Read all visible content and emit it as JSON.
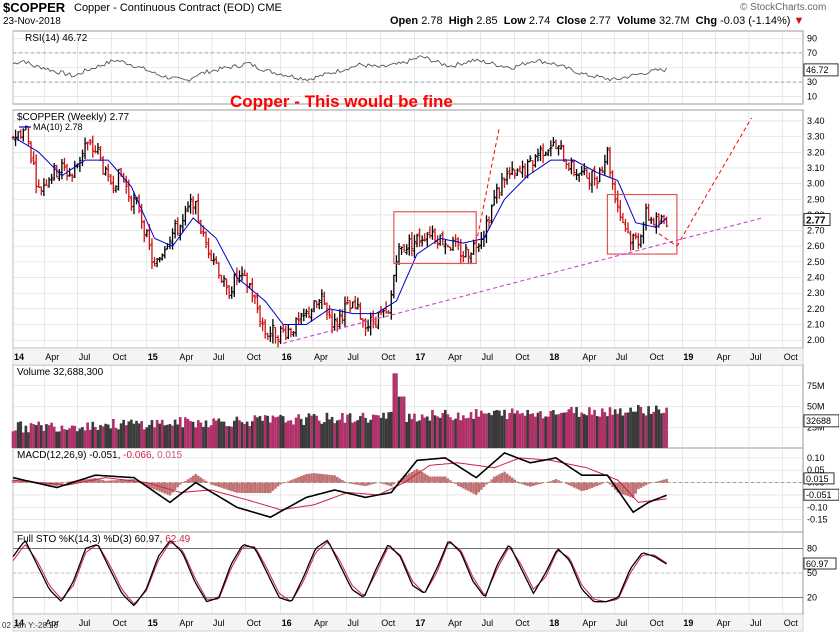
{
  "header": {
    "symbol": "$COPPER",
    "name": "Copper - Continuous Contract (EOD)",
    "exchange": "CME",
    "date": "23-Nov-2018",
    "brand": "© StockCharts.com",
    "open_label": "Open",
    "open": "2.78",
    "high_label": "High",
    "high": "2.85",
    "low_label": "Low",
    "low": "2.74",
    "close_label": "Close",
    "close": "2.77",
    "volume_label": "Volume",
    "volume": "32.7M",
    "chg_label": "Chg",
    "chg": "-0.03 (-1.14%)"
  },
  "chart_data": [
    {
      "type": "line",
      "panel": "rsi",
      "title": "RSI(14) 46.72",
      "current_label": "46.72",
      "yticks": [
        10,
        30,
        50,
        70,
        90
      ],
      "ylim": [
        0,
        100
      ],
      "reference_lines": [
        30,
        70
      ],
      "series": [
        {
          "name": "RSI(14)",
          "values": [
            55,
            60,
            52,
            50,
            45,
            42,
            38,
            45,
            50,
            55,
            60,
            57,
            52,
            47,
            41,
            37,
            34,
            32,
            40,
            44,
            47,
            50,
            52,
            56,
            50,
            45,
            42,
            39,
            36,
            34,
            38,
            42,
            46,
            50,
            54,
            52,
            50,
            53,
            55,
            60,
            65,
            60,
            55,
            52,
            56,
            60,
            58,
            55,
            52,
            50,
            55,
            60,
            58,
            55,
            50,
            45,
            40,
            38,
            35,
            33,
            37,
            40,
            43,
            46,
            47
          ]
        }
      ]
    },
    {
      "type": "bar",
      "panel": "price",
      "title": "$COPPER (Weekly) 2.77",
      "ma_label": "MA(10) 2.78",
      "current_label": "2.77",
      "annotation": "Copper - This would be fine",
      "yticks": [
        2.0,
        2.1,
        2.2,
        2.3,
        2.4,
        2.5,
        2.6,
        2.7,
        2.8,
        2.9,
        3.0,
        3.1,
        3.2,
        3.3,
        3.4
      ],
      "ylim": [
        1.95,
        3.47
      ],
      "anchors": [
        [
          "2014-01-06",
          3.3
        ],
        [
          "2014-02-10",
          3.35
        ],
        [
          "2014-03-17",
          2.95
        ],
        [
          "2014-04-14",
          3.05
        ],
        [
          "2014-05-19",
          3.1
        ],
        [
          "2014-06-16",
          3.05
        ],
        [
          "2014-07-21",
          3.25
        ],
        [
          "2014-08-25",
          3.2
        ],
        [
          "2014-09-22",
          3.0
        ],
        [
          "2014-10-27",
          3.05
        ],
        [
          "2014-11-24",
          2.9
        ],
        [
          "2014-12-15",
          2.85
        ],
        [
          "2015-01-26",
          2.45
        ],
        [
          "2015-03-02",
          2.65
        ],
        [
          "2015-04-13",
          2.75
        ],
        [
          "2015-05-11",
          2.9
        ],
        [
          "2015-06-08",
          2.65
        ],
        [
          "2015-07-13",
          2.5
        ],
        [
          "2015-08-10",
          2.3
        ],
        [
          "2015-09-07",
          2.4
        ],
        [
          "2015-10-12",
          2.35
        ],
        [
          "2015-11-23",
          2.05
        ],
        [
          "2016-01-11",
          2.05
        ],
        [
          "2016-02-22",
          2.1
        ],
        [
          "2016-03-28",
          2.2
        ],
        [
          "2016-04-25",
          2.25
        ],
        [
          "2016-05-30",
          2.1
        ],
        [
          "2016-06-27",
          2.2
        ],
        [
          "2016-07-25",
          2.2
        ],
        [
          "2016-08-29",
          2.1
        ],
        [
          "2016-09-26",
          2.15
        ],
        [
          "2016-10-24",
          2.15
        ],
        [
          "2016-11-14",
          2.55
        ],
        [
          "2016-12-05",
          2.6
        ],
        [
          "2017-01-16",
          2.65
        ],
        [
          "2017-02-13",
          2.7
        ],
        [
          "2017-03-13",
          2.65
        ],
        [
          "2017-04-17",
          2.6
        ],
        [
          "2017-05-15",
          2.55
        ],
        [
          "2017-06-12",
          2.6
        ],
        [
          "2017-07-10",
          2.7
        ],
        [
          "2017-08-07",
          2.9
        ],
        [
          "2017-09-04",
          3.05
        ],
        [
          "2017-10-09",
          3.05
        ],
        [
          "2017-11-06",
          3.1
        ],
        [
          "2017-12-04",
          3.2
        ],
        [
          "2018-01-08",
          3.25
        ],
        [
          "2018-02-05",
          3.2
        ],
        [
          "2018-03-05",
          3.1
        ],
        [
          "2018-04-09",
          3.05
        ],
        [
          "2018-05-14",
          3.05
        ],
        [
          "2018-06-11",
          3.2
        ],
        [
          "2018-06-25",
          3.0
        ],
        [
          "2018-07-16",
          2.8
        ],
        [
          "2018-08-13",
          2.65
        ],
        [
          "2018-09-03",
          2.65
        ],
        [
          "2018-09-24",
          2.8
        ],
        [
          "2018-10-22",
          2.75
        ],
        [
          "2018-11-19",
          2.77
        ]
      ],
      "ma_anchors": [
        [
          "2014-01-06",
          3.3
        ],
        [
          "2014-03-17",
          3.2
        ],
        [
          "2014-05-19",
          3.05
        ],
        [
          "2014-07-21",
          3.15
        ],
        [
          "2014-09-22",
          3.15
        ],
        [
          "2014-11-24",
          2.98
        ],
        [
          "2015-01-26",
          2.65
        ],
        [
          "2015-03-16",
          2.6
        ],
        [
          "2015-05-11",
          2.78
        ],
        [
          "2015-07-13",
          2.65
        ],
        [
          "2015-09-07",
          2.4
        ],
        [
          "2015-11-23",
          2.25
        ],
        [
          "2016-01-11",
          2.1
        ],
        [
          "2016-03-14",
          2.1
        ],
        [
          "2016-05-16",
          2.2
        ],
        [
          "2016-07-18",
          2.17
        ],
        [
          "2016-09-19",
          2.17
        ],
        [
          "2016-11-14",
          2.25
        ],
        [
          "2017-01-09",
          2.55
        ],
        [
          "2017-03-13",
          2.65
        ],
        [
          "2017-05-15",
          2.62
        ],
        [
          "2017-07-10",
          2.65
        ],
        [
          "2017-09-04",
          2.9
        ],
        [
          "2017-11-06",
          3.05
        ],
        [
          "2018-01-08",
          3.15
        ],
        [
          "2018-03-12",
          3.15
        ],
        [
          "2018-05-14",
          3.07
        ],
        [
          "2018-07-09",
          3.02
        ],
        [
          "2018-08-27",
          2.75
        ],
        [
          "2018-10-22",
          2.72
        ],
        [
          "2018-11-19",
          2.78
        ]
      ],
      "boxes": [
        {
          "from": "2016-11-07",
          "to": "2017-06-19",
          "low": 2.49,
          "high": 2.82
        },
        {
          "from": "2018-06-11",
          "to": "2018-12-17",
          "low": 2.55,
          "high": 2.93
        }
      ],
      "trendline": {
        "from": [
          "2016-01-11",
          1.98
        ],
        "to": [
          "2019-08-05",
          2.78
        ]
      },
      "projections": [
        {
          "from": [
            "2017-06-19",
            2.62
          ],
          "to": [
            "2017-08-21",
            3.36
          ]
        },
        {
          "from": [
            "2018-10-29",
            2.68
          ],
          "to": [
            "2018-12-17",
            2.6
          ]
        },
        {
          "from": [
            "2018-12-17",
            2.6
          ],
          "to": [
            "2019-07-08",
            3.42
          ]
        }
      ]
    },
    {
      "type": "bar",
      "panel": "volume",
      "title": "Volume 32,688,300",
      "current_label": "32688",
      "yticks": [
        "25M",
        "50M",
        "75M"
      ],
      "ylim": [
        0,
        100000000
      ]
    },
    {
      "type": "line",
      "panel": "macd",
      "title": "MACD(12,26,9) -0.051, -0.066, 0.015",
      "title_parts": [
        "MACD(12,26,9) -0.051,",
        " -0.066,",
        " 0.015"
      ],
      "hist_label": "0.015",
      "macd_label": "-0.051",
      "yticks": [
        -0.15,
        -0.1,
        -0.05,
        0.0,
        0.05,
        0.1
      ],
      "ylim": [
        -0.2,
        0.14
      ],
      "series": [
        {
          "name": "MACD",
          "x": [
            "2014-01-06",
            "2014-05-05",
            "2014-08-18",
            "2014-12-01",
            "2015-03-09",
            "2015-05-18",
            "2015-09-07",
            "2015-12-07",
            "2016-03-14",
            "2016-05-30",
            "2016-08-22",
            "2016-10-31",
            "2017-01-09",
            "2017-03-27",
            "2017-06-19",
            "2017-09-04",
            "2017-11-13",
            "2018-01-22",
            "2018-04-02",
            "2018-06-11",
            "2018-08-20",
            "2018-10-01",
            "2018-11-19"
          ],
          "values": [
            0.02,
            -0.02,
            0.03,
            0.02,
            -0.08,
            0.0,
            -0.1,
            -0.14,
            -0.06,
            -0.03,
            -0.06,
            -0.04,
            0.09,
            0.1,
            0.02,
            0.12,
            0.08,
            0.1,
            0.03,
            0.03,
            -0.12,
            -0.08,
            -0.051
          ]
        },
        {
          "name": "Signal",
          "x": [
            "2014-01-06",
            "2014-06-02",
            "2014-09-15",
            "2015-01-05",
            "2015-04-06",
            "2015-06-29",
            "2015-10-05",
            "2016-01-04",
            "2016-04-04",
            "2016-07-04",
            "2016-09-26",
            "2016-12-05",
            "2017-02-13",
            "2017-05-01",
            "2017-08-07",
            "2017-10-16",
            "2018-01-08",
            "2018-04-16",
            "2018-07-09",
            "2018-09-03",
            "2018-11-19"
          ],
          "values": [
            0.01,
            -0.01,
            0.02,
            0.0,
            -0.04,
            -0.03,
            -0.07,
            -0.11,
            -0.09,
            -0.04,
            -0.05,
            0.0,
            0.07,
            0.08,
            0.06,
            0.1,
            0.09,
            0.06,
            0.01,
            -0.08,
            -0.066
          ]
        }
      ]
    },
    {
      "type": "line",
      "panel": "stochastic",
      "title": "Full STO %K(14,3) %D(3) 60.97, 62.49",
      "title_parts": [
        "Full STO %K(14,3) %D(3) 60.97,",
        " 62.49"
      ],
      "current_label": "60.97",
      "yticks": [
        20,
        50,
        80
      ],
      "ylim": [
        0,
        100
      ],
      "reference_lines": [
        20,
        80
      ],
      "series": [
        {
          "name": "%K",
          "values": [
            70,
            90,
            60,
            30,
            15,
            40,
            80,
            85,
            55,
            25,
            10,
            30,
            70,
            90,
            75,
            40,
            15,
            20,
            60,
            85,
            80,
            50,
            20,
            15,
            45,
            80,
            90,
            60,
            30,
            20,
            55,
            85,
            70,
            35,
            25,
            55,
            90,
            75,
            40,
            20,
            60,
            85,
            55,
            25,
            50,
            80,
            65,
            30,
            15,
            15,
            20,
            55,
            75,
            70,
            61
          ]
        },
        {
          "name": "%D",
          "values": [
            65,
            85,
            65,
            35,
            18,
            35,
            75,
            85,
            60,
            30,
            12,
            28,
            65,
            88,
            78,
            45,
            18,
            18,
            55,
            82,
            82,
            55,
            25,
            15,
            40,
            75,
            88,
            65,
            35,
            22,
            50,
            82,
            72,
            40,
            25,
            50,
            88,
            78,
            45,
            22,
            55,
            82,
            60,
            30,
            45,
            78,
            68,
            35,
            18,
            15,
            18,
            50,
            72,
            72,
            62
          ]
        }
      ]
    }
  ],
  "x_axis": {
    "labels": [
      {
        "t": "2014-01-06",
        "text": "14",
        "bold": true
      },
      {
        "t": "2014-04-01",
        "text": "Apr"
      },
      {
        "t": "2014-07-01",
        "text": "Jul"
      },
      {
        "t": "2014-10-01",
        "text": "Oct"
      },
      {
        "t": "2015-01-05",
        "text": "15",
        "bold": true
      },
      {
        "t": "2015-04-01",
        "text": "Apr"
      },
      {
        "t": "2015-07-01",
        "text": "Jul"
      },
      {
        "t": "2015-10-01",
        "text": "Oct"
      },
      {
        "t": "2016-01-04",
        "text": "16",
        "bold": true
      },
      {
        "t": "2016-04-01",
        "text": "Apr"
      },
      {
        "t": "2016-07-01",
        "text": "Jul"
      },
      {
        "t": "2016-10-01",
        "text": "Oct"
      },
      {
        "t": "2017-01-02",
        "text": "17",
        "bold": true
      },
      {
        "t": "2017-04-01",
        "text": "Apr"
      },
      {
        "t": "2017-07-01",
        "text": "Jul"
      },
      {
        "t": "2017-10-01",
        "text": "Oct"
      },
      {
        "t": "2018-01-01",
        "text": "18",
        "bold": true
      },
      {
        "t": "2018-04-01",
        "text": "Apr"
      },
      {
        "t": "2018-07-01",
        "text": "Jul"
      },
      {
        "t": "2018-10-01",
        "text": "Oct"
      },
      {
        "t": "2019-01-01",
        "text": "19",
        "bold": true
      },
      {
        "t": "2019-04-01",
        "text": "Apr"
      },
      {
        "t": "2019-07-01",
        "text": "Jul"
      },
      {
        "t": "2019-10-01",
        "text": "Oct"
      }
    ],
    "bottom_note": "02 Jan Y:-28.26"
  },
  "colors": {
    "up": "#000000",
    "down": "#cc1111",
    "ma": "#0000cc",
    "annot": "#ff0000",
    "box": "#e05555",
    "trend": "#cc44cc",
    "vol_up": "#3a3a3a",
    "vol_down": "#b0306a",
    "grid": "#d8d8d8"
  }
}
